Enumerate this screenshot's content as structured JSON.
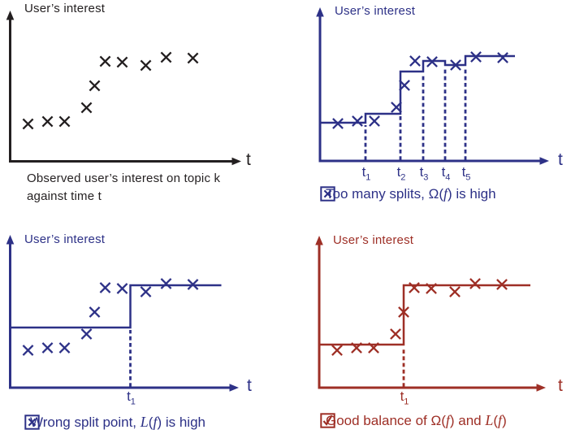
{
  "chart_data": {
    "type": "multi-panel",
    "layout_hint": "2x2 grid of sketch plots; coordinates are offsets from each panel axis origin, y increasing upward; axes unnumbered",
    "x_range": [
      0,
      240
    ],
    "y_range": [
      0,
      140
    ],
    "shared_points": {
      "x": [
        22,
        46,
        67,
        94,
        104,
        117,
        138,
        167,
        192,
        225
      ],
      "y": [
        46,
        49,
        49,
        66,
        93,
        123,
        122,
        118,
        128,
        127
      ]
    },
    "panels": [
      {
        "name": "observed-scatter",
        "type": "scatter",
        "color": "#231F20",
        "ylabel": "User’s interest",
        "xlabel": "t",
        "steps": [],
        "splits": [],
        "caption_lines": [
          "Observed user’s interest on topic k",
          "against time t"
        ]
      },
      {
        "name": "too-many-splits",
        "type": "scatter+step",
        "color": "#2D3187",
        "ylabel": "User’s interest",
        "xlabel": "t",
        "steps": [
          {
            "from": 0,
            "to": 56,
            "level": 47
          },
          {
            "from": 56,
            "to": 99,
            "level": 58
          },
          {
            "from": 99,
            "to": 127,
            "level": 110
          },
          {
            "from": 127,
            "to": 154,
            "level": 123
          },
          {
            "from": 154,
            "to": 179,
            "level": 118
          },
          {
            "from": 179,
            "to": 240,
            "level": 129
          }
        ],
        "splits": [
          {
            "x": 56,
            "label": "t",
            "sub": "1"
          },
          {
            "x": 99,
            "label": "t",
            "sub": "2"
          },
          {
            "x": 127,
            "label": "t",
            "sub": "3"
          },
          {
            "x": 154,
            "label": "t",
            "sub": "4"
          },
          {
            "x": 179,
            "label": "t",
            "sub": "5"
          }
        ],
        "caption": {
          "icon": "x-box",
          "segments": [
            {
              "text": "Too many splits, "
            },
            {
              "text": "Ω("
            },
            {
              "text": "f",
              "italic": true
            },
            {
              "text": ")  is high"
            }
          ]
        }
      },
      {
        "name": "wrong-split-point",
        "type": "scatter+step",
        "color": "#2D3187",
        "ylabel": "User’s interest",
        "xlabel": "t",
        "steps": [
          {
            "from": 0,
            "to": 148,
            "level": 74
          },
          {
            "from": 148,
            "to": 260,
            "level": 126
          }
        ],
        "splits": [
          {
            "x": 148,
            "label": "t",
            "sub": "1"
          }
        ],
        "caption": {
          "icon": "x-box",
          "segments": [
            {
              "text": "Wrong split point, "
            },
            {
              "text": "L",
              "italic": true
            },
            {
              "text": "("
            },
            {
              "text": "f",
              "italic": true
            },
            {
              "text": ") is high"
            }
          ]
        }
      },
      {
        "name": "good-balance",
        "type": "scatter+step",
        "color": "#9E2F26",
        "ylabel": "User’s interest",
        "xlabel": "t",
        "steps": [
          {
            "from": 0,
            "to": 104,
            "level": 53
          },
          {
            "from": 104,
            "to": 260,
            "level": 126
          }
        ],
        "splits": [
          {
            "x": 104,
            "label": "t",
            "sub": "1"
          }
        ],
        "caption": {
          "icon": "check-box",
          "segments": [
            {
              "text": "Good balance of "
            },
            {
              "text": "Ω("
            },
            {
              "text": "f",
              "italic": true
            },
            {
              "text": ") and "
            },
            {
              "text": "L",
              "italic": true
            },
            {
              "text": "("
            },
            {
              "text": "f",
              "italic": true
            },
            {
              "text": ")"
            }
          ]
        }
      }
    ]
  }
}
